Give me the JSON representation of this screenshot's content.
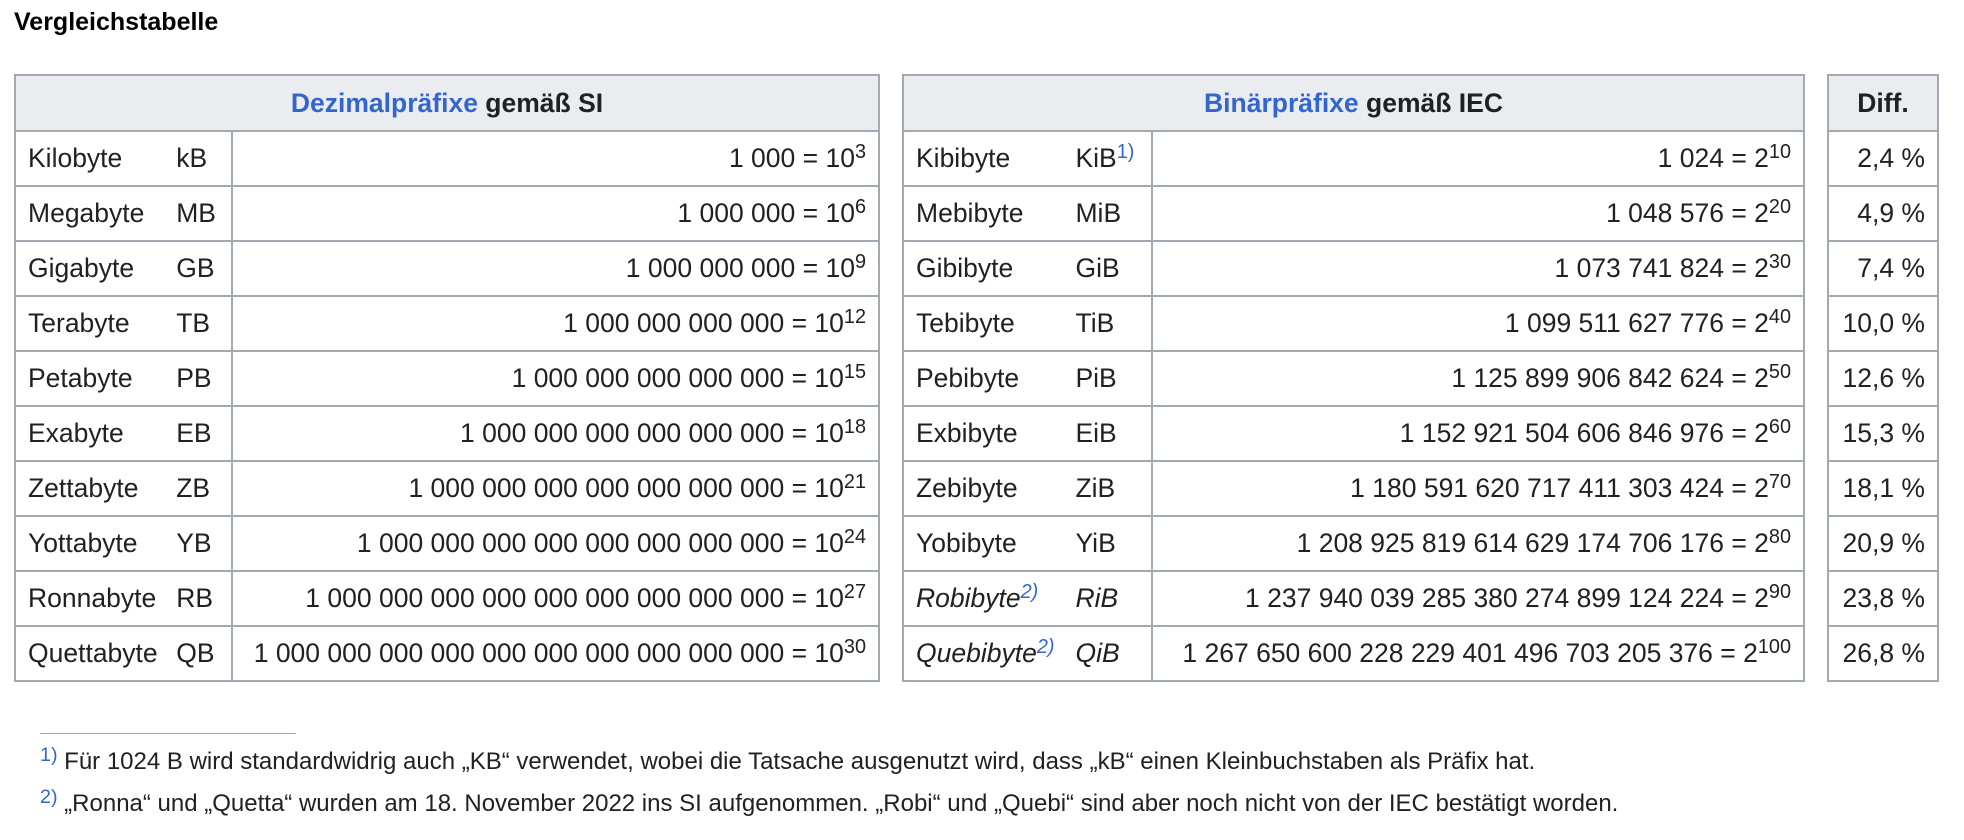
{
  "heading": "Vergleichstabelle",
  "si_header": {
    "link": "Dezimalpräfixe",
    "rest": " gemäß SI"
  },
  "iec_header": {
    "link": "Binärpräfixe",
    "rest": " gemäß IEC"
  },
  "diff_header": "Diff.",
  "rows": [
    {
      "si_name": "Kilobyte",
      "si_abbr": "kB",
      "si_value": "1 000 = 10",
      "si_exp": "3",
      "iec_name": "Kibibyte",
      "iec_name_ref": "",
      "iec_abbr": "KiB",
      "iec_abbr_ref": "1)",
      "iec_value": "1 024 = 2",
      "iec_exp": "10",
      "diff": "2,4 %"
    },
    {
      "si_name": "Megabyte",
      "si_abbr": "MB",
      "si_value": "1 000 000 = 10",
      "si_exp": "6",
      "iec_name": "Mebibyte",
      "iec_name_ref": "",
      "iec_abbr": "MiB",
      "iec_abbr_ref": "",
      "iec_value": "1 048 576 = 2",
      "iec_exp": "20",
      "diff": "4,9 %"
    },
    {
      "si_name": "Gigabyte",
      "si_abbr": "GB",
      "si_value": "1 000 000 000 = 10",
      "si_exp": "9",
      "iec_name": "Gibibyte",
      "iec_name_ref": "",
      "iec_abbr": "GiB",
      "iec_abbr_ref": "",
      "iec_value": "1 073 741 824 = 2",
      "iec_exp": "30",
      "diff": "7,4 %"
    },
    {
      "si_name": "Terabyte",
      "si_abbr": "TB",
      "si_value": "1 000 000 000 000 = 10",
      "si_exp": "12",
      "iec_name": "Tebibyte",
      "iec_name_ref": "",
      "iec_abbr": "TiB",
      "iec_abbr_ref": "",
      "iec_value": "1 099 511 627 776 = 2",
      "iec_exp": "40",
      "diff": "10,0 %"
    },
    {
      "si_name": "Petabyte",
      "si_abbr": "PB",
      "si_value": "1 000 000 000 000 000 = 10",
      "si_exp": "15",
      "iec_name": "Pebibyte",
      "iec_name_ref": "",
      "iec_abbr": "PiB",
      "iec_abbr_ref": "",
      "iec_value": "1 125 899 906 842 624 = 2",
      "iec_exp": "50",
      "diff": "12,6 %"
    },
    {
      "si_name": "Exabyte",
      "si_abbr": "EB",
      "si_value": "1 000 000 000 000 000 000 = 10",
      "si_exp": "18",
      "iec_name": "Exbibyte",
      "iec_name_ref": "",
      "iec_abbr": "EiB",
      "iec_abbr_ref": "",
      "iec_value": "1 152 921 504 606 846 976 = 2",
      "iec_exp": "60",
      "diff": "15,3 %"
    },
    {
      "si_name": "Zettabyte",
      "si_abbr": "ZB",
      "si_value": "1 000 000 000 000 000 000 000 = 10",
      "si_exp": "21",
      "iec_name": "Zebibyte",
      "iec_name_ref": "",
      "iec_abbr": "ZiB",
      "iec_abbr_ref": "",
      "iec_value": "1 180 591 620 717 411 303 424 = 2",
      "iec_exp": "70",
      "diff": "18,1 %"
    },
    {
      "si_name": "Yottabyte",
      "si_abbr": "YB",
      "si_value": "1 000 000 000 000 000 000 000 000 = 10",
      "si_exp": "24",
      "iec_name": "Yobibyte",
      "iec_name_ref": "",
      "iec_abbr": "YiB",
      "iec_abbr_ref": "",
      "iec_value": "1 208 925 819 614 629 174 706 176 = 2",
      "iec_exp": "80",
      "diff": "20,9 %"
    },
    {
      "si_name": "Ronnabyte",
      "si_abbr": "RB",
      "si_value": "1 000 000 000 000 000 000 000 000 000 = 10",
      "si_exp": "27",
      "iec_name": "Robibyte",
      "iec_name_ref": "2)",
      "iec_abbr": "RiB",
      "iec_abbr_ref": "",
      "iec_value": "1 237 940 039 285 380 274 899 124 224 = 2",
      "iec_exp": "90",
      "diff": "23,8 %",
      "iec_italic": true
    },
    {
      "si_name": "Quettabyte",
      "si_abbr": "QB",
      "si_value": "1 000 000 000 000 000 000 000 000 000 000 = 10",
      "si_exp": "30",
      "iec_name": "Quebibyte",
      "iec_name_ref": "2)",
      "iec_abbr": "QiB",
      "iec_abbr_ref": "",
      "iec_value": "1 267 650 600 228 229 401 496 703 205 376 = 2",
      "iec_exp": "100",
      "diff": "26,8 %",
      "iec_italic": true
    }
  ],
  "footnotes": [
    {
      "mark": "1)",
      "text": " Für 1024 B wird standardwidrig auch „KB“ verwendet, wobei die Tatsache ausgenutzt wird, dass „kB“ einen Kleinbuchstaben als Präfix hat."
    },
    {
      "mark": "2)",
      "text": " „Ronna“ und „Quetta“ wurden am 18. November 2022 ins SI aufgenommen. „Robi“ und „Quebi“ sind aber noch nicht von der IEC bestätigt worden."
    }
  ],
  "colors": {
    "link": "#3366cc",
    "header_bg": "#eaecf0",
    "border": "#a2a9b1",
    "text": "#202122"
  }
}
